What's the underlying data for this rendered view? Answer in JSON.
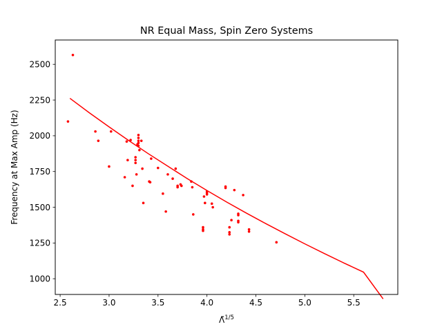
{
  "chart_data": {
    "type": "scatter",
    "title": "NR Equal Mass, Spin Zero Systems",
    "ylabel": "Frequency at Max Amp (Hz)",
    "xlabel_base": "Λ̃",
    "xlabel_exp": "1/5",
    "xlim": [
      2.45,
      5.95
    ],
    "ylim": [
      890,
      2670
    ],
    "x_ticks": [
      2.5,
      3.0,
      3.5,
      4.0,
      4.5,
      5.0,
      5.5
    ],
    "x_tick_labels": [
      "2.5",
      "3.0",
      "3.5",
      "4.0",
      "4.5",
      "5.0",
      "5.5"
    ],
    "y_ticks": [
      1000,
      1250,
      1500,
      1750,
      2000,
      2250,
      2500
    ],
    "y_tick_labels": [
      "1000",
      "1250",
      "1500",
      "1750",
      "2000",
      "2250",
      "2500"
    ],
    "grid": false,
    "color": "#ff0000",
    "series": [
      {
        "kind": "scatter",
        "points": [
          [
            2.58,
            2100
          ],
          [
            2.63,
            2565
          ],
          [
            2.86,
            2030
          ],
          [
            2.89,
            1965
          ],
          [
            3.0,
            1785
          ],
          [
            3.02,
            2030
          ],
          [
            3.16,
            1710
          ],
          [
            3.18,
            1960
          ],
          [
            3.19,
            1830
          ],
          [
            3.22,
            1970
          ],
          [
            3.24,
            1650
          ],
          [
            3.27,
            1850
          ],
          [
            3.27,
            1830
          ],
          [
            3.27,
            1810
          ],
          [
            3.28,
            1730
          ],
          [
            3.29,
            1940
          ],
          [
            3.3,
            2005
          ],
          [
            3.3,
            1985
          ],
          [
            3.3,
            1965
          ],
          [
            3.3,
            1950
          ],
          [
            3.3,
            1930
          ],
          [
            3.31,
            1900
          ],
          [
            3.33,
            1965
          ],
          [
            3.34,
            1770
          ],
          [
            3.35,
            1530
          ],
          [
            3.41,
            1680
          ],
          [
            3.42,
            1675
          ],
          [
            3.43,
            1840
          ],
          [
            3.5,
            1775
          ],
          [
            3.55,
            1595
          ],
          [
            3.58,
            1470
          ],
          [
            3.6,
            1730
          ],
          [
            3.65,
            1700
          ],
          [
            3.68,
            1770
          ],
          [
            3.7,
            1650
          ],
          [
            3.7,
            1640
          ],
          [
            3.73,
            1660
          ],
          [
            3.74,
            1650
          ],
          [
            3.84,
            1680
          ],
          [
            3.85,
            1640
          ],
          [
            3.86,
            1450
          ],
          [
            3.96,
            1360
          ],
          [
            3.96,
            1345
          ],
          [
            3.96,
            1335
          ],
          [
            3.97,
            1575
          ],
          [
            3.98,
            1530
          ],
          [
            4.0,
            1610
          ],
          [
            4.0,
            1600
          ],
          [
            4.0,
            1590
          ],
          [
            4.05,
            1525
          ],
          [
            4.06,
            1500
          ],
          [
            4.19,
            1645
          ],
          [
            4.19,
            1635
          ],
          [
            4.23,
            1360
          ],
          [
            4.23,
            1325
          ],
          [
            4.23,
            1310
          ],
          [
            4.25,
            1410
          ],
          [
            4.28,
            1620
          ],
          [
            4.32,
            1455
          ],
          [
            4.32,
            1445
          ],
          [
            4.32,
            1405
          ],
          [
            4.32,
            1395
          ],
          [
            4.37,
            1585
          ],
          [
            4.43,
            1345
          ],
          [
            4.43,
            1330
          ],
          [
            4.71,
            1255
          ]
        ]
      },
      {
        "kind": "fit-line",
        "points": [
          [
            2.6,
            2262
          ],
          [
            2.8,
            2160
          ],
          [
            3.0,
            2062
          ],
          [
            3.2,
            1967
          ],
          [
            3.4,
            1875
          ],
          [
            3.6,
            1787
          ],
          [
            3.8,
            1700
          ],
          [
            4.0,
            1617
          ],
          [
            4.2,
            1537
          ],
          [
            4.4,
            1460
          ],
          [
            4.6,
            1386
          ],
          [
            4.8,
            1314
          ],
          [
            5.0,
            1244
          ],
          [
            5.2,
            1176
          ],
          [
            5.4,
            1110
          ],
          [
            5.6,
            1046
          ],
          [
            5.8,
            859
          ]
        ]
      }
    ]
  }
}
